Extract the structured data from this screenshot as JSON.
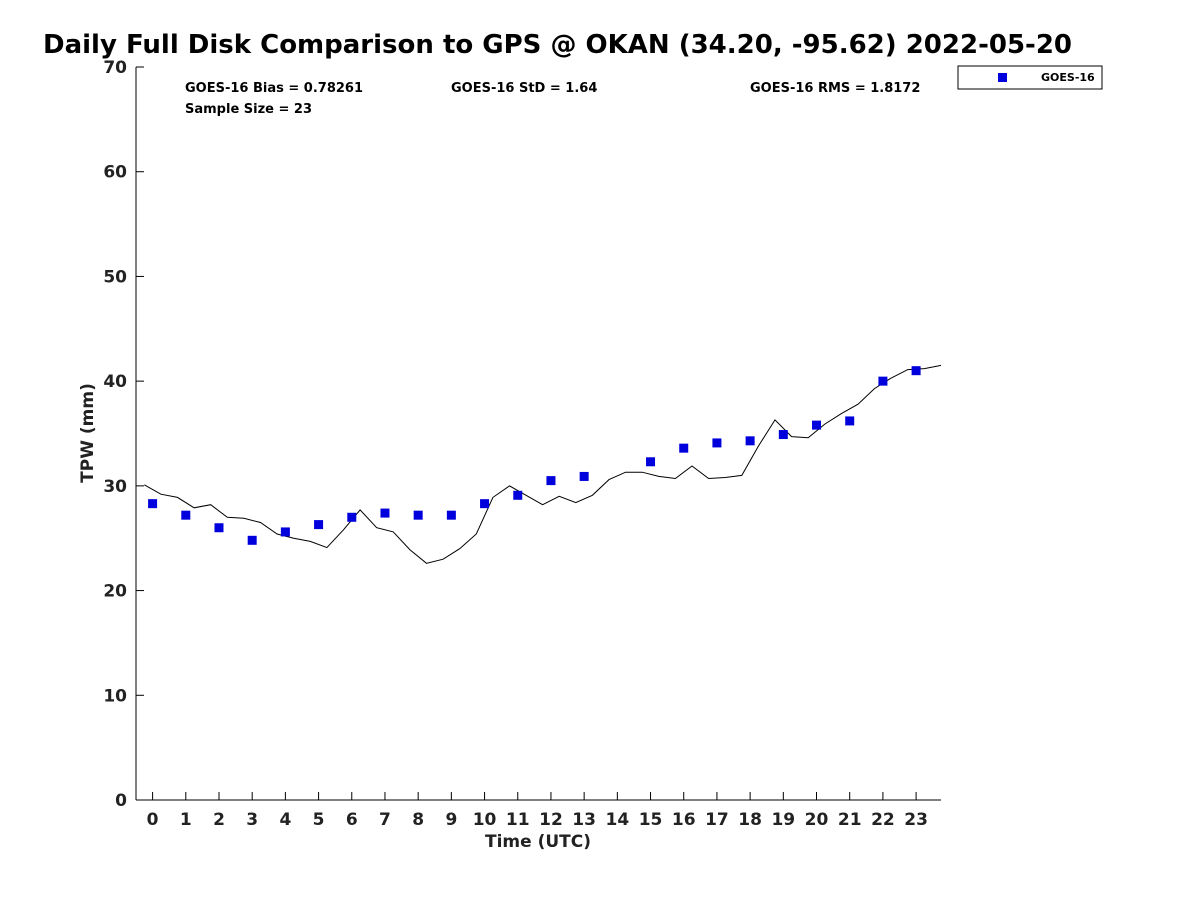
{
  "chart_data": {
    "type": "scatter",
    "title": "Daily Full Disk Comparison to GPS @ OKAN (34.20, -95.62) 2022-05-20",
    "xlabel": "Time (UTC)",
    "ylabel": "TPW (mm)",
    "xlim": [
      -0.5,
      23.75
    ],
    "ylim": [
      0,
      70
    ],
    "xticks": [
      0,
      1,
      2,
      3,
      4,
      5,
      6,
      7,
      8,
      9,
      10,
      11,
      12,
      13,
      14,
      15,
      16,
      17,
      18,
      19,
      20,
      21,
      22,
      23
    ],
    "yticks": [
      0,
      10,
      20,
      30,
      40,
      50,
      60,
      70
    ],
    "grid": false,
    "legend": {
      "placement": "outside top-right",
      "entries": [
        "GOES-16"
      ]
    },
    "stats": {
      "bias": "GOES-16 Bias = 0.78261",
      "std": "GOES-16 StD = 1.64",
      "rms": "GOES-16 RMS = 1.8172",
      "sample": "Sample Size = 23"
    },
    "series": [
      {
        "name": "GOES-16",
        "kind": "markers",
        "color": "#0000dd",
        "x": [
          0,
          1,
          2,
          3,
          4,
          5,
          6,
          7,
          8,
          9,
          10,
          11,
          12,
          13,
          15,
          16,
          17,
          18,
          19,
          20,
          21,
          22,
          23
        ],
        "y": [
          28.3,
          27.2,
          26.0,
          24.8,
          25.6,
          26.3,
          27.0,
          27.4,
          27.2,
          27.2,
          28.3,
          29.1,
          30.5,
          30.9,
          32.3,
          33.6,
          34.1,
          34.3,
          34.9,
          35.8,
          36.2,
          40.0,
          41.0
        ]
      },
      {
        "kind": "line",
        "color": "#000000",
        "x": [
          -0.25,
          0.25,
          0.75,
          1.25,
          1.75,
          2.25,
          2.75,
          3.25,
          3.75,
          4.25,
          4.75,
          5.25,
          5.75,
          6.25,
          6.75,
          7.25,
          7.75,
          8.25,
          8.75,
          9.25,
          9.75,
          10.25,
          10.75,
          11.25,
          11.75,
          12.25,
          12.75,
          13.25,
          13.75,
          14.25,
          14.75,
          15.25,
          15.75,
          16.25,
          16.75,
          17.25,
          17.75,
          18.25,
          18.75,
          19.25,
          19.75,
          20.25,
          20.75,
          21.25,
          21.75,
          22.25,
          22.75,
          23.25,
          23.75
        ],
        "y": [
          30.1,
          29.2,
          28.9,
          27.9,
          28.2,
          27.0,
          26.9,
          26.5,
          25.4,
          25.0,
          24.7,
          24.1,
          25.8,
          27.7,
          26.0,
          25.6,
          23.9,
          22.6,
          23.0,
          24.0,
          25.4,
          28.9,
          30.0,
          29.1,
          28.2,
          29.0,
          28.4,
          29.1,
          30.6,
          31.3,
          31.3,
          30.9,
          30.7,
          31.9,
          30.7,
          30.8,
          31.0,
          33.8,
          36.3,
          34.7,
          34.6,
          35.9,
          36.9,
          37.8,
          39.3,
          40.3,
          41.1,
          41.2,
          41.5
        ]
      }
    ]
  }
}
